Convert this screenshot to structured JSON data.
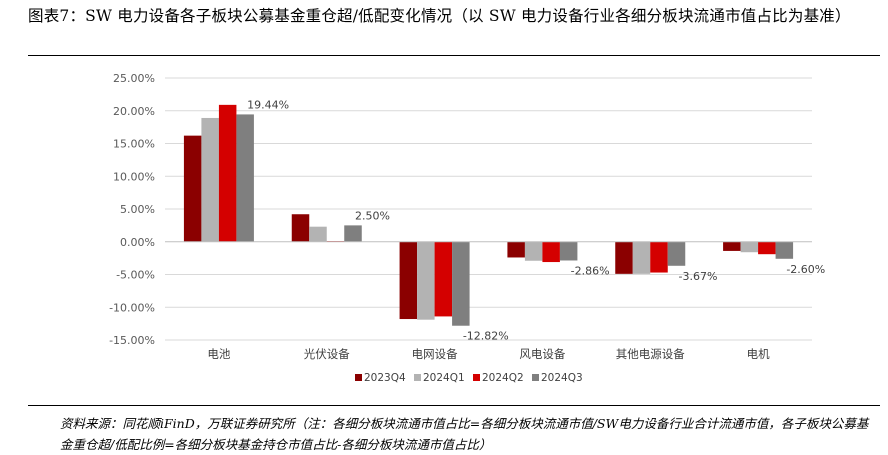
{
  "figure": {
    "title": "图表7：SW 电力设备各子板块公募基金重仓超/低配变化情况（以 SW 电力设备行业各细分板块流通市值占比为基准）",
    "source": "资料来源：同花顺iFinD，万联证券研究所（注：各细分板块流通市值占比=各细分板块流通市值/SW电力设备行业合计流通市值，各子板块公募基金重仓超/低配比例=各细分板块基金持仓市值占比-各细分板块流通市值占比）"
  },
  "chart_data": {
    "type": "bar",
    "title": "",
    "xlabel": "",
    "ylabel": "",
    "categories": [
      "电池",
      "光伏设备",
      "电网设备",
      "风电设备",
      "其他电源设备",
      "电机"
    ],
    "series": [
      {
        "name": "2023Q4",
        "color": "#8b0000",
        "values": [
          16.2,
          4.2,
          -11.8,
          -2.4,
          -4.9,
          -1.4
        ]
      },
      {
        "name": "2024Q1",
        "color": "#b3b3b3",
        "values": [
          18.9,
          2.3,
          -11.9,
          -2.9,
          -4.9,
          -1.6
        ]
      },
      {
        "name": "2024Q2",
        "color": "#d40000",
        "values": [
          20.9,
          0.1,
          -11.4,
          -3.1,
          -4.7,
          -1.9
        ]
      },
      {
        "name": "2024Q3",
        "color": "#7f7f7f",
        "values": [
          19.44,
          2.5,
          -12.82,
          -2.86,
          -3.67,
          -2.6
        ]
      }
    ],
    "data_labels": [
      {
        "category": "电池",
        "series": "2024Q3",
        "text": "19.44%"
      },
      {
        "category": "光伏设备",
        "series": "2024Q3",
        "text": "2.50%"
      },
      {
        "category": "电网设备",
        "series": "2024Q3",
        "text": "-12.82%"
      },
      {
        "category": "风电设备",
        "series": "2024Q3",
        "text": "-2.86%"
      },
      {
        "category": "其他电源设备",
        "series": "2024Q3",
        "text": "-3.67%"
      },
      {
        "category": "电机",
        "series": "2024Q3",
        "text": "-2.60%"
      }
    ],
    "yticks": [
      "25.00%",
      "20.00%",
      "15.00%",
      "10.00%",
      "5.00%",
      "0.00%",
      "-5.00%",
      "-10.00%",
      "-15.00%"
    ],
    "ylim": [
      -15,
      25
    ],
    "grid": true,
    "legend_position": "bottom"
  }
}
